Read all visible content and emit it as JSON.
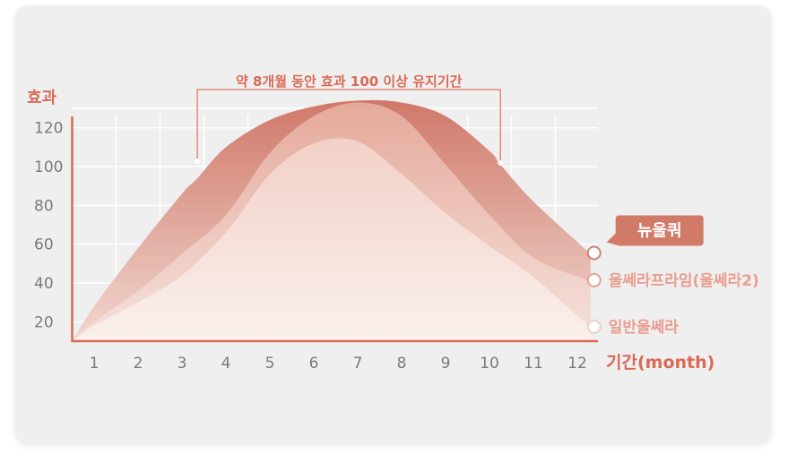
{
  "chart_data": {
    "type": "area",
    "ylabel": "효과",
    "xlabel": "기간(month)",
    "y_ticks": [
      20,
      40,
      60,
      80,
      100,
      120
    ],
    "categories": [
      "1",
      "2",
      "3",
      "4",
      "5",
      "6",
      "7",
      "8",
      "9",
      "10",
      "11",
      "12"
    ],
    "ylim": [
      10,
      130
    ],
    "x_start": 0.5,
    "annotation": {
      "text": "약 8개월 동안 효과 100 이상 유지기간",
      "x_from": 3.35,
      "x_to": 10.25,
      "threshold": 100
    },
    "series": [
      {
        "name": "뉴울쿼",
        "color": "#d27f70",
        "x": [
          0.5,
          1,
          2,
          3,
          3.35,
          4,
          5,
          6,
          7,
          8,
          9,
          10,
          10.25,
          11,
          12.3
        ],
        "values": [
          10,
          28,
          58,
          86,
          94,
          110,
          124,
          131,
          134,
          133,
          126,
          108,
          101,
          82,
          55
        ]
      },
      {
        "name": "울쎄라프라임(울쎄라2)",
        "color": "#e3a394",
        "x": [
          0.5,
          1,
          2,
          3,
          4,
          5,
          6,
          7,
          8,
          9,
          10,
          11,
          12.3
        ],
        "values": [
          10,
          20,
          36,
          55,
          75,
          107,
          126,
          133,
          126,
          101,
          75,
          53,
          41
        ]
      },
      {
        "name": "일반울쎄라",
        "color": "#efcfc6",
        "x": [
          0.5,
          1,
          2,
          3,
          4,
          5,
          6,
          7,
          8,
          9,
          10,
          11,
          12.3
        ],
        "values": [
          10,
          18,
          30,
          44,
          66,
          96,
          112,
          113,
          96,
          76,
          59,
          43,
          17
        ]
      }
    ]
  }
}
